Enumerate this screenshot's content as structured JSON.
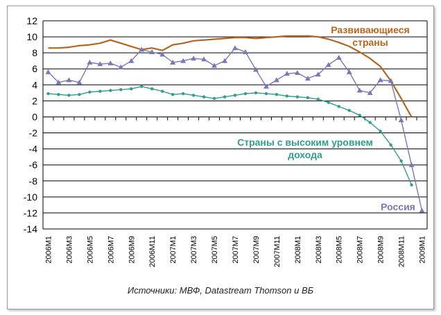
{
  "chart_data": {
    "type": "line",
    "x": [
      "2006M1",
      "2006M2",
      "2006M3",
      "2006M4",
      "2006M5",
      "2006M6",
      "2006M7",
      "2006M8",
      "2006M9",
      "2006M10",
      "2006M11",
      "2006M12",
      "2007M1",
      "2007M2",
      "2007M3",
      "2007M4",
      "2007M5",
      "2007M6",
      "2007M7",
      "2007M8",
      "2007M9",
      "2007M10",
      "2007M11",
      "2007M12",
      "2008M1",
      "2008M2",
      "2008M3",
      "2008M4",
      "2008M5",
      "2008M6",
      "2008M7",
      "2008M8",
      "2008M9",
      "2008M10",
      "2008M11",
      "2008M12",
      "2009M1"
    ],
    "x_tick_labels": [
      "2006M1",
      "2006M3",
      "2006M5",
      "2006M7",
      "2006M9",
      "2006M11",
      "2007M1",
      "2007M3",
      "2007M5",
      "2007M7",
      "2007M9",
      "2007M11",
      "2008M1",
      "2008M3",
      "2008M5",
      "2008M7",
      "2008M9",
      "2008M11",
      "2009M1"
    ],
    "ylim": [
      -14,
      12
    ],
    "y_ticks": [
      12,
      10,
      8,
      6,
      4,
      2,
      0,
      -2,
      -4,
      -6,
      -8,
      -10,
      -12,
      -14
    ],
    "grid": true,
    "series": [
      {
        "name": "Развивающиеся страны",
        "color": "#B5651D",
        "marker": "none",
        "values": [
          8.6,
          8.6,
          8.7,
          8.9,
          9.0,
          9.2,
          9.6,
          9.2,
          8.8,
          8.4,
          8.6,
          8.3,
          9.0,
          9.2,
          9.5,
          9.6,
          9.7,
          9.8,
          9.9,
          9.9,
          9.8,
          9.9,
          10.0,
          10.1,
          10.1,
          10.1,
          10.0,
          9.7,
          9.3,
          8.8,
          8.1,
          7.3,
          6.3,
          4.5,
          2.3,
          0.0,
          null
        ]
      },
      {
        "name": "Страны с высоким уровнем дохода",
        "color": "#2E9E8E",
        "marker": "dot",
        "values": [
          2.9,
          2.8,
          2.7,
          2.8,
          3.1,
          3.2,
          3.3,
          3.4,
          3.5,
          3.8,
          3.5,
          3.2,
          2.8,
          2.9,
          2.7,
          2.5,
          2.3,
          2.5,
          2.7,
          2.9,
          3.0,
          2.9,
          2.8,
          2.6,
          2.5,
          2.4,
          2.2,
          1.8,
          1.3,
          0.8,
          0.2,
          -0.7,
          -1.8,
          -3.5,
          -5.5,
          -8.5,
          null
        ]
      },
      {
        "name": "Россия",
        "color": "#7878B8",
        "marker": "triangle",
        "values": [
          5.6,
          4.3,
          4.6,
          4.3,
          6.8,
          6.6,
          6.7,
          6.2,
          7.0,
          8.4,
          8.1,
          7.8,
          6.8,
          7.0,
          7.3,
          7.2,
          6.4,
          7.0,
          8.6,
          8.1,
          5.9,
          3.8,
          4.6,
          5.4,
          5.5,
          4.8,
          5.3,
          6.5,
          7.4,
          5.6,
          3.3,
          3.0,
          4.6,
          4.5,
          -0.4,
          -6.0,
          -11.7
        ]
      }
    ],
    "labels": {
      "developing_line1": "Развивающиеся",
      "developing_line2": "страны",
      "high_income_line1": "Страны с высоким уровнем",
      "high_income_line2": "дохода",
      "russia": "Россия"
    }
  },
  "source_note": "Источники: МВФ, Datastream Thomson и ВБ"
}
